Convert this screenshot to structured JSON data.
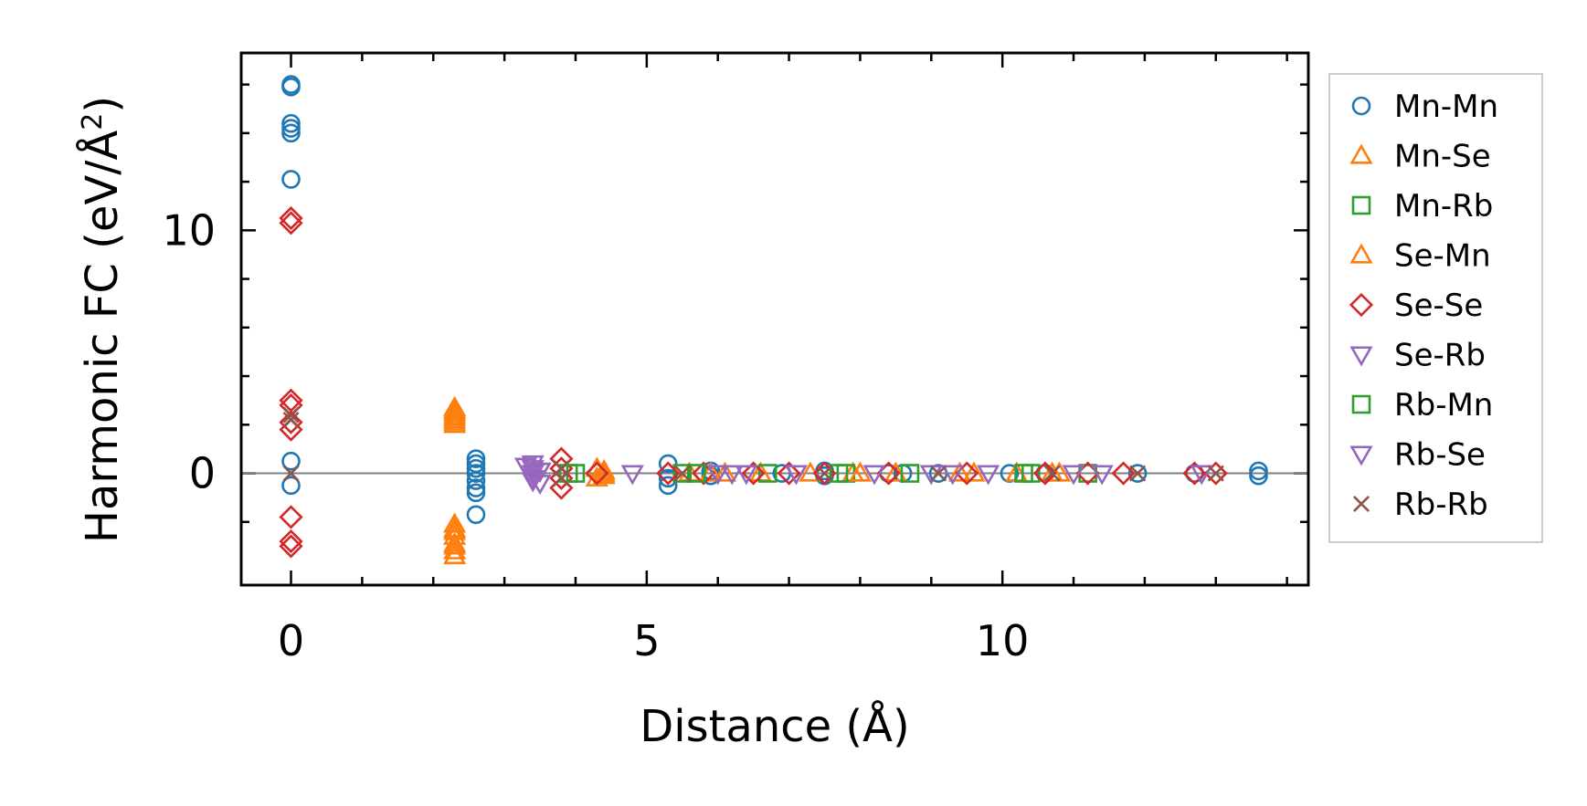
{
  "chart_data": {
    "type": "scatter",
    "title": "",
    "xlabel": "Distance (Å)",
    "ylabel_main": "Harmonic FC (eV/Å",
    "ylabel_sup": "2",
    "ylabel_end": ")",
    "xlim": [
      -0.7,
      14.3
    ],
    "ylim": [
      -4.6,
      17.3
    ],
    "xticks": [
      0,
      5,
      10
    ],
    "xtick_labels": [
      "0",
      "5",
      "10"
    ],
    "yticks": [
      0,
      10
    ],
    "ytick_labels": [
      "0",
      "10"
    ],
    "grid": false,
    "zero_line": true,
    "legend_position": "outside-right",
    "series": [
      {
        "name": "Mn-Mn",
        "marker": "circle",
        "color": "#1f77b4",
        "x": [
          0,
          0,
          0,
          0,
          0,
          0,
          0,
          0,
          2.6,
          2.6,
          2.6,
          2.6,
          2.6,
          2.6,
          2.6,
          2.6,
          5.3,
          5.3,
          5.3,
          5.9,
          5.9,
          6.9,
          7.5,
          7.5,
          8.4,
          8.6,
          9.1,
          10.1,
          10.6,
          11.9,
          12.7,
          13.6,
          13.6
        ],
        "y": [
          16.0,
          15.9,
          14.4,
          14.2,
          14.0,
          12.1,
          0.5,
          -0.5,
          0.6,
          0.4,
          0.2,
          0,
          -0.3,
          -0.6,
          -0.8,
          -1.7,
          0.4,
          -0.2,
          -0.5,
          0.1,
          -0.1,
          0,
          0.1,
          -0.1,
          0,
          0,
          0,
          0,
          0,
          0,
          0,
          0.1,
          -0.1
        ]
      },
      {
        "name": "Mn-Se",
        "marker": "triangle-up",
        "color": "#ff7f0e",
        "x": [
          2.3,
          2.3,
          2.3,
          2.3,
          2.3,
          2.3,
          2.3,
          2.3,
          2.3,
          2.3,
          2.3,
          2.3,
          4.3,
          4.3,
          4.4,
          4.4,
          5.6,
          5.9,
          6.6,
          7.3,
          7.9,
          8.5,
          9.6,
          10.2,
          10.8
        ],
        "y": [
          2.7,
          2.5,
          2.4,
          2.2,
          2.1,
          2.0,
          -2.1,
          -2.3,
          -2.6,
          -2.9,
          -3.2,
          -3.4,
          0.2,
          -0.2,
          0.1,
          -0.1,
          0,
          0,
          0,
          0,
          0,
          0,
          0,
          0,
          0
        ]
      },
      {
        "name": "Mn-Rb",
        "marker": "square",
        "color": "#2ca02c",
        "x": [
          3.9,
          5.5,
          6.7,
          7.8,
          8.7,
          10.4,
          11.2
        ],
        "y": [
          0,
          0,
          0,
          0,
          0,
          0,
          0
        ]
      },
      {
        "name": "Se-Mn",
        "marker": "triangle-up",
        "color": "#ff7f0e",
        "x": [
          2.3,
          2.3,
          2.3,
          2.3,
          4.4,
          6.1,
          8.0,
          9.4,
          10.7
        ],
        "y": [
          2.6,
          2.3,
          -2.4,
          -3.0,
          0,
          0,
          0,
          0,
          0
        ]
      },
      {
        "name": "Se-Se",
        "marker": "diamond",
        "color": "#d62728",
        "x": [
          0,
          0,
          0,
          0,
          0,
          0,
          0,
          0,
          0,
          3.8,
          3.8,
          3.8,
          3.8,
          4.3,
          5.3,
          5.8,
          6.5,
          7.0,
          7.5,
          8.4,
          9.5,
          10.6,
          11.2,
          11.7,
          12.7,
          13.0
        ],
        "y": [
          10.5,
          10.3,
          3.0,
          2.8,
          2.1,
          1.8,
          -1.8,
          -2.8,
          -3.0,
          0.6,
          0.2,
          -0.2,
          -0.6,
          0,
          0,
          0,
          0,
          0,
          0,
          0,
          0,
          0,
          0,
          0,
          0,
          0
        ]
      },
      {
        "name": "Se-Rb",
        "marker": "triangle-down",
        "color": "#9467bd",
        "x": [
          3.4,
          3.4,
          3.4,
          3.4,
          3.5,
          3.5,
          4.8,
          6.0,
          6.4,
          7.1,
          8.2,
          9.0,
          9.8,
          11.0,
          12.8
        ],
        "y": [
          0.4,
          0.2,
          0,
          -0.2,
          -0.4,
          0.1,
          0,
          0,
          0,
          0,
          0,
          0,
          0,
          0,
          0
        ]
      },
      {
        "name": "Rb-Mn",
        "marker": "square",
        "color": "#2ca02c",
        "x": [
          4.0,
          5.7,
          7.7,
          10.3
        ],
        "y": [
          0,
          0,
          0,
          0
        ]
      },
      {
        "name": "Rb-Se",
        "marker": "triangle-down",
        "color": "#9467bd",
        "x": [
          3.3,
          3.4,
          3.5,
          6.2,
          9.3,
          11.4
        ],
        "y": [
          0.3,
          -0.3,
          0.1,
          0,
          0,
          0
        ]
      },
      {
        "name": "Rb-Rb",
        "marker": "x",
        "color": "#8c564b",
        "x": [
          0,
          0,
          0,
          3.8,
          3.8,
          5.5,
          7.5,
          9.1,
          10.7,
          11.9,
          13.0
        ],
        "y": [
          2.4,
          2.2,
          0,
          0.2,
          -0.2,
          0,
          0,
          0,
          0,
          0,
          0
        ]
      }
    ]
  }
}
